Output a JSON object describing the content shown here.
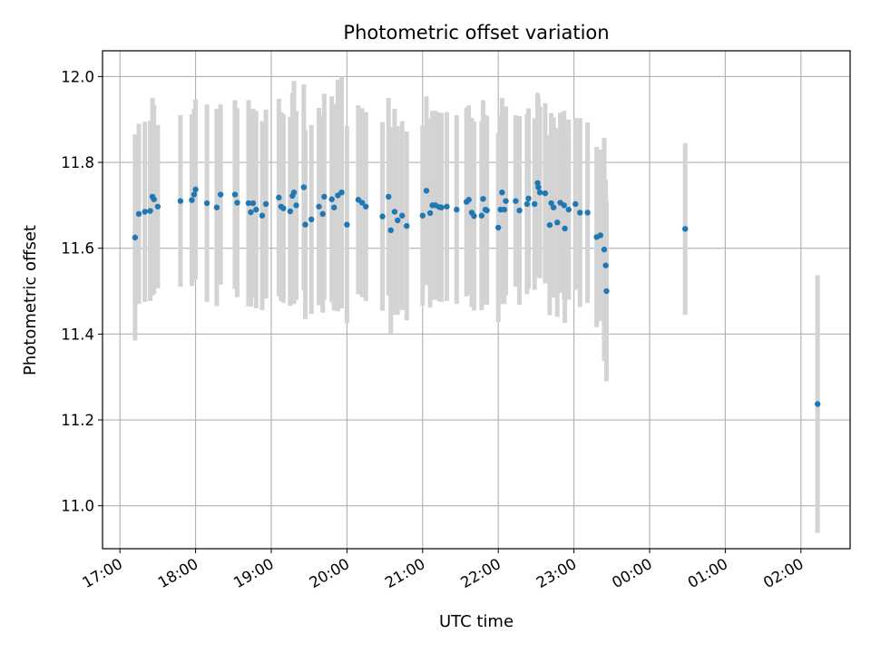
{
  "chart_data": {
    "type": "scatter",
    "title": "Photometric offset variation",
    "xlabel": "UTC time",
    "ylabel": "Photometric offset",
    "x_tick_labels": [
      "17:00",
      "18:00",
      "19:00",
      "20:00",
      "21:00",
      "22:00",
      "23:00",
      "00:00",
      "01:00",
      "02:00"
    ],
    "y_tick_labels": [
      "11.0",
      "11.2",
      "11.4",
      "11.6",
      "11.8",
      "12.0"
    ],
    "x_unit": "hours since 17:00 UTC (values beyond 24:00 wrap to next day)",
    "xlim_hours_after_1700": [
      -0.23,
      9.65
    ],
    "ylim": [
      10.9,
      12.06
    ],
    "grid": true,
    "colors": {
      "point": "#1f77b4",
      "errorbar": "#d3d3d3",
      "grid": "#b0b0b0"
    },
    "series": [
      {
        "points": [
          [
            0.2,
            11.625,
            0.24
          ],
          [
            0.25,
            11.68,
            0.21
          ],
          [
            0.33,
            11.685,
            0.21
          ],
          [
            0.4,
            11.687,
            0.21
          ],
          [
            0.43,
            11.72,
            0.23
          ],
          [
            0.45,
            11.714,
            0.22
          ],
          [
            0.5,
            11.697,
            0.19
          ],
          [
            0.8,
            11.71,
            0.2
          ],
          [
            0.95,
            11.712,
            0.2
          ],
          [
            0.98,
            11.725,
            0.2
          ],
          [
            1.0,
            11.737,
            0.21
          ],
          [
            1.15,
            11.705,
            0.23
          ],
          [
            1.28,
            11.695,
            0.23
          ],
          [
            1.33,
            11.725,
            0.21
          ],
          [
            1.52,
            11.725,
            0.22
          ],
          [
            1.55,
            11.706,
            0.22
          ],
          [
            1.7,
            11.705,
            0.24
          ],
          [
            1.73,
            11.684,
            0.22
          ],
          [
            1.76,
            11.705,
            0.22
          ],
          [
            1.8,
            11.69,
            0.23
          ],
          [
            1.88,
            11.676,
            0.22
          ],
          [
            1.93,
            11.703,
            0.22
          ],
          [
            2.1,
            11.718,
            0.23
          ],
          [
            2.13,
            11.697,
            0.22
          ],
          [
            2.16,
            11.693,
            0.22
          ],
          [
            2.25,
            11.686,
            0.22
          ],
          [
            2.28,
            11.722,
            0.24
          ],
          [
            2.3,
            11.73,
            0.26
          ],
          [
            2.33,
            11.7,
            0.22
          ],
          [
            2.43,
            11.742,
            0.24
          ],
          [
            2.45,
            11.655,
            0.22
          ],
          [
            2.53,
            11.667,
            0.22
          ],
          [
            2.63,
            11.697,
            0.23
          ],
          [
            2.68,
            11.68,
            0.23
          ],
          [
            2.7,
            11.72,
            0.24
          ],
          [
            2.8,
            11.714,
            0.24
          ],
          [
            2.83,
            11.695,
            0.24
          ],
          [
            2.88,
            11.723,
            0.27
          ],
          [
            2.93,
            11.73,
            0.27
          ],
          [
            3.0,
            11.655,
            0.23
          ],
          [
            3.15,
            11.713,
            0.22
          ],
          [
            3.2,
            11.706,
            0.22
          ],
          [
            3.25,
            11.697,
            0.22
          ],
          [
            3.47,
            11.674,
            0.22
          ],
          [
            3.55,
            11.72,
            0.23
          ],
          [
            3.58,
            11.642,
            0.24
          ],
          [
            3.63,
            11.685,
            0.24
          ],
          [
            3.67,
            11.665,
            0.22
          ],
          [
            3.73,
            11.676,
            0.22
          ],
          [
            3.79,
            11.652,
            0.22
          ],
          [
            4.0,
            11.676,
            0.21
          ],
          [
            4.05,
            11.734,
            0.22
          ],
          [
            4.1,
            11.682,
            0.22
          ],
          [
            4.13,
            11.7,
            0.22
          ],
          [
            4.17,
            11.7,
            0.22
          ],
          [
            4.22,
            11.696,
            0.22
          ],
          [
            4.25,
            11.695,
            0.22
          ],
          [
            4.32,
            11.697,
            0.22
          ],
          [
            4.45,
            11.69,
            0.22
          ],
          [
            4.58,
            11.708,
            0.22
          ],
          [
            4.61,
            11.713,
            0.22
          ],
          [
            4.65,
            11.683,
            0.22
          ],
          [
            4.68,
            11.675,
            0.22
          ],
          [
            4.78,
            11.676,
            0.22
          ],
          [
            4.8,
            11.715,
            0.23
          ],
          [
            4.83,
            11.69,
            0.22
          ],
          [
            4.85,
            11.688,
            0.22
          ],
          [
            5.0,
            11.648,
            0.22
          ],
          [
            5.03,
            11.69,
            0.22
          ],
          [
            5.05,
            11.73,
            0.22
          ],
          [
            5.08,
            11.69,
            0.22
          ],
          [
            5.1,
            11.71,
            0.22
          ],
          [
            5.23,
            11.71,
            0.2
          ],
          [
            5.28,
            11.688,
            0.22
          ],
          [
            5.38,
            11.703,
            0.21
          ],
          [
            5.4,
            11.716,
            0.21
          ],
          [
            5.48,
            11.703,
            0.2
          ],
          [
            5.52,
            11.752,
            0.21
          ],
          [
            5.53,
            11.742,
            0.21
          ],
          [
            5.55,
            11.73,
            0.2
          ],
          [
            5.62,
            11.728,
            0.21
          ],
          [
            5.68,
            11.654,
            0.21
          ],
          [
            5.7,
            11.705,
            0.21
          ],
          [
            5.73,
            11.695,
            0.21
          ],
          [
            5.78,
            11.66,
            0.22
          ],
          [
            5.82,
            11.706,
            0.21
          ],
          [
            5.87,
            11.7,
            0.22
          ],
          [
            5.88,
            11.646,
            0.22
          ],
          [
            5.93,
            11.69,
            0.21
          ],
          [
            6.02,
            11.703,
            0.2
          ],
          [
            6.08,
            11.683,
            0.22
          ],
          [
            6.18,
            11.683,
            0.21
          ],
          [
            6.3,
            11.626,
            0.21
          ],
          [
            6.35,
            11.63,
            0.2
          ],
          [
            6.4,
            11.597,
            0.26
          ],
          [
            6.42,
            11.56,
            0.2
          ],
          [
            6.43,
            11.5,
            0.21
          ],
          [
            7.47,
            11.645,
            0.2
          ],
          [
            9.22,
            11.237,
            0.3
          ]
        ]
      }
    ]
  }
}
